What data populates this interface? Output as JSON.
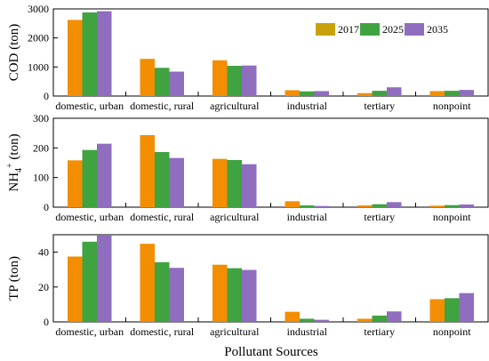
{
  "figure": {
    "xlabel": "Pollutant Sources",
    "legend": {
      "placement": "top-right of first panel",
      "entries": [
        "2017",
        "2025",
        "2035"
      ]
    },
    "colors": {
      "2017": "#F28E00",
      "2025": "#3FA33F",
      "2035": "#8F6DBF",
      "legend_2017_swatch": "#C9A10A"
    }
  },
  "chart_data": [
    {
      "type": "bar",
      "id": "cod",
      "ylabel": "COD (ton)",
      "categories": [
        "domestic, urban",
        "domestic, rural",
        "agricultural",
        "industrial",
        "tertiary",
        "nonpoint"
      ],
      "ylim": [
        0,
        3000
      ],
      "yticks": [
        0,
        1000,
        2000,
        3000
      ],
      "series": [
        {
          "name": "2017",
          "values": [
            2620,
            1280,
            1230,
            200,
            100,
            170
          ]
        },
        {
          "name": "2025",
          "values": [
            2880,
            970,
            1040,
            160,
            180,
            180
          ]
        },
        {
          "name": "2035",
          "values": [
            2920,
            840,
            1050,
            170,
            300,
            210
          ]
        }
      ]
    },
    {
      "type": "bar",
      "id": "nh4",
      "ylabel": "NH4+ (ton)",
      "categories": [
        "domestic, urban",
        "domestic, rural",
        "agricultural",
        "industrial",
        "tertiary",
        "nonpoint"
      ],
      "ylim": [
        0,
        300
      ],
      "yticks": [
        0,
        100,
        200,
        300
      ],
      "series": [
        {
          "name": "2017",
          "values": [
            158,
            243,
            163,
            20,
            6,
            5
          ]
        },
        {
          "name": "2025",
          "values": [
            193,
            186,
            159,
            6,
            10,
            7
          ]
        },
        {
          "name": "2035",
          "values": [
            214,
            166,
            145,
            4,
            17,
            9
          ]
        }
      ]
    },
    {
      "type": "bar",
      "id": "tp",
      "ylabel": "TP (ton)",
      "categories": [
        "domestic, urban",
        "domestic, rural",
        "agricultural",
        "industrial",
        "tertiary",
        "nonpoint"
      ],
      "ylim": [
        0,
        50
      ],
      "yticks": [
        0,
        20,
        40
      ],
      "series": [
        {
          "name": "2017",
          "values": [
            37.5,
            44.8,
            32.8,
            5.8,
            1.8,
            13.0
          ]
        },
        {
          "name": "2025",
          "values": [
            46.0,
            34.2,
            30.8,
            1.8,
            3.6,
            13.6
          ]
        },
        {
          "name": "2035",
          "values": [
            49.5,
            31.0,
            29.8,
            1.2,
            6.0,
            16.5
          ]
        }
      ]
    }
  ]
}
